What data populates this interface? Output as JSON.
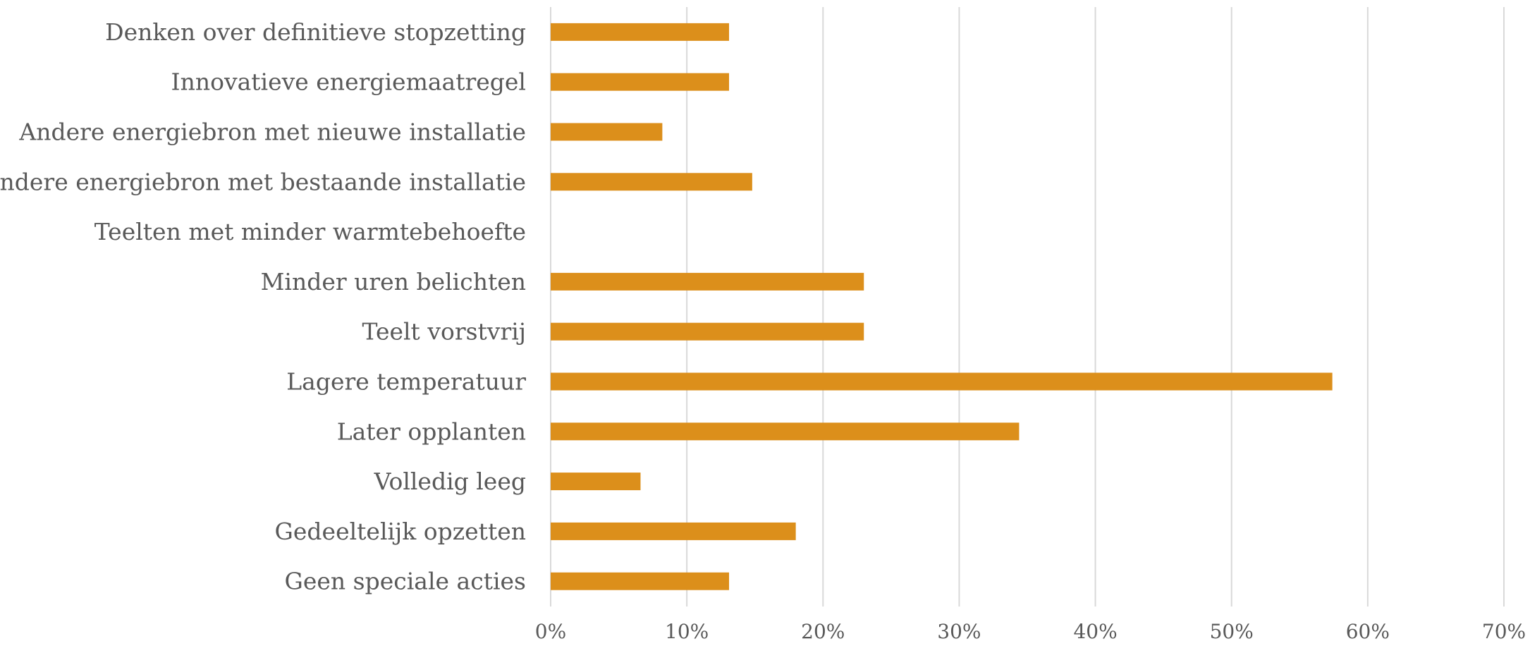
{
  "chart_data": {
    "type": "bar",
    "orientation": "horizontal",
    "categories": [
      "Denken over definitieve stopzetting",
      "Innovatieve energiemaatregel",
      "Andere energiebron met nieuwe installatie",
      "Andere energiebron met bestaande installatie",
      "Teelten met minder warmtebehoefte",
      "Minder uren belichten",
      "Teelt vorstvrij",
      "Lagere temperatuur",
      "Later opplanten",
      "Volledig leeg",
      "Gedeeltelijk opzetten",
      "Geen speciale acties"
    ],
    "values": [
      13.1,
      13.1,
      8.2,
      14.8,
      0,
      23.0,
      23.0,
      57.4,
      34.4,
      6.6,
      18.0,
      13.1
    ],
    "x_ticks": [
      "0%",
      "10%",
      "20%",
      "30%",
      "40%",
      "50%",
      "60%",
      "70%"
    ],
    "xlim": [
      0,
      70
    ],
    "title": "",
    "xlabel": "",
    "ylabel": "",
    "grid": "vertical",
    "legend": "none",
    "bar_color": "#dc8f1b",
    "grid_color": "#d9d9d9",
    "label_color": "#595959"
  }
}
